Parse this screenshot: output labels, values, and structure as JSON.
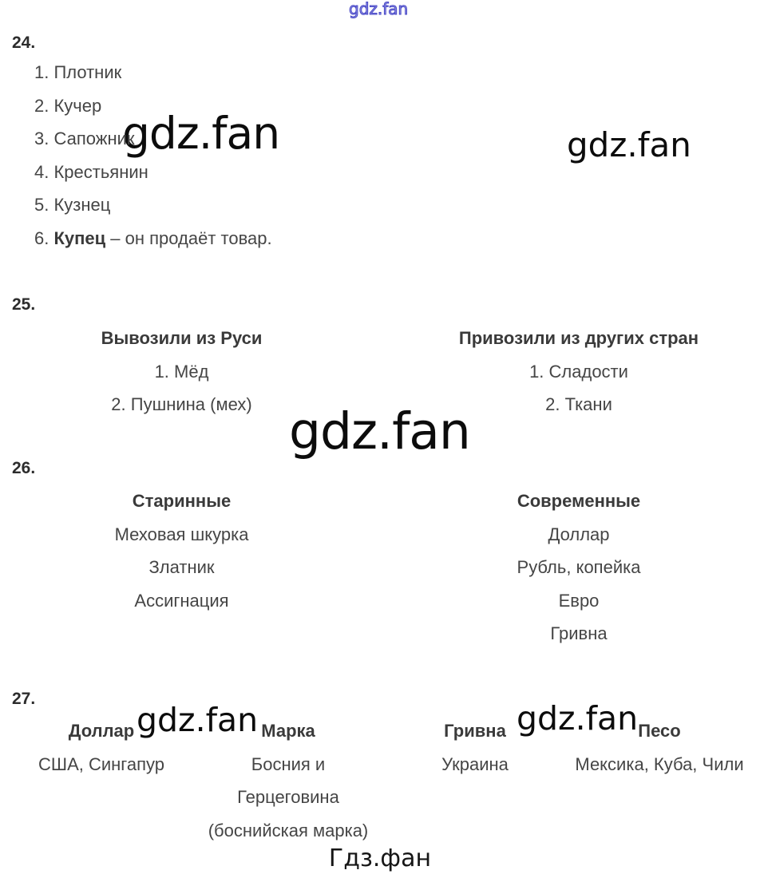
{
  "watermarks": {
    "top": "gdz.fan",
    "upper_left_large": "gdz.fan",
    "upper_right": "gdz.fan",
    "middle_large": "gdz.fan",
    "bottom_left": "gdz.fan",
    "bottom_right": "gdz.fan",
    "footer": "Гдз.фан"
  },
  "colors": {
    "text": "#454545",
    "bold_text": "#3a3a3a",
    "watermark_black": "#0c0c0c",
    "watermark_blue": "#4646c6",
    "background": "#ffffff"
  },
  "section24": {
    "number": "24.",
    "items": [
      "1. Плотник",
      "2. Кучер",
      "3. Сапожник",
      "4. Крестьянин",
      "5. Кузнец"
    ],
    "item6": {
      "prefix": "6. ",
      "bold": "Купец",
      "rest": " – он продаёт товар."
    }
  },
  "section25": {
    "number": "25.",
    "left": {
      "header": "Вывозили из Руси",
      "items": [
        "1. Мёд",
        "2. Пушнина (мех)"
      ]
    },
    "right": {
      "header": "Привозили из других стран",
      "items": [
        "1. Сладости",
        "2. Ткани"
      ]
    }
  },
  "section26": {
    "number": "26.",
    "left": {
      "header": "Старинные",
      "items": [
        "Меховая шкурка",
        "Златник",
        "Ассигнация"
      ]
    },
    "right": {
      "header": "Современные",
      "items": [
        "Доллар",
        "Рубль, копейка",
        "Евро",
        "Гривна"
      ]
    }
  },
  "section27": {
    "number": "27.",
    "columns": [
      {
        "header": "Доллар",
        "lines": [
          "США, Сингапур"
        ]
      },
      {
        "header": "Марка",
        "lines": [
          "Босния и",
          "Герцеговина",
          "(боснийская марка)"
        ]
      },
      {
        "header": "Гривна",
        "lines": [
          "Украина"
        ]
      },
      {
        "header": "Песо",
        "lines": [
          "Мексика, Куба, Чили"
        ]
      }
    ]
  }
}
